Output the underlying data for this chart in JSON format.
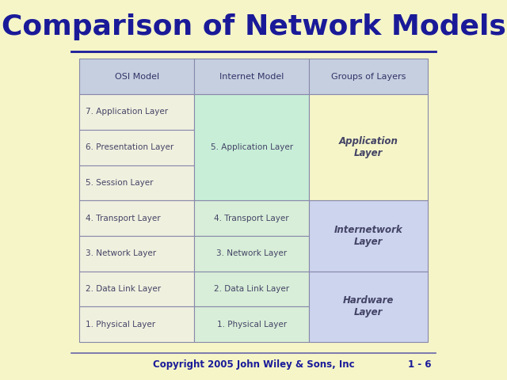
{
  "title": "Comparison of Network Models",
  "title_color": "#1a1a99",
  "title_fontsize": 26,
  "background_color": "#f5f5c8",
  "footer_text": "Copyright 2005 John Wiley & Sons, Inc",
  "footer_right": "1 - 6",
  "footer_color": "#1a1a99",
  "header_row": [
    "OSI Model",
    "Internet Model",
    "Groups of Layers"
  ],
  "header_bg": "#c5cfe0",
  "osi_rows": [
    "7. Application Layer",
    "6. Presentation Layer",
    "5. Session Layer",
    "4. Transport Layer",
    "3. Network Layer",
    "2. Data Link Layer",
    "1. Physical Layer"
  ],
  "border_color": "#8888aa",
  "title_line_color": "#1a1a99",
  "footer_line_color": "#6666aa"
}
